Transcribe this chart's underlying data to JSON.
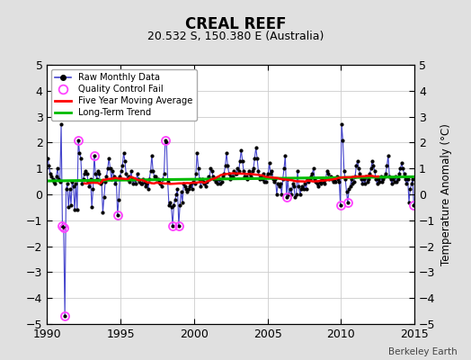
{
  "title": "CREAL REEF",
  "subtitle": "20.532 S, 150.380 E (Australia)",
  "ylabel": "Temperature Anomaly (°C)",
  "watermark": "Berkeley Earth",
  "xlim": [
    1990,
    2015
  ],
  "ylim": [
    -5,
    5
  ],
  "yticks": [
    -5,
    -4,
    -3,
    -2,
    -1,
    0,
    1,
    2,
    3,
    4,
    5
  ],
  "xticks": [
    1990,
    1995,
    2000,
    2005,
    2010,
    2015
  ],
  "bg_color": "#e0e0e0",
  "plot_bg_color": "#ffffff",
  "raw_line_color": "#4444cc",
  "raw_dot_color": "#000000",
  "qc_fail_color": "#ff44ff",
  "moving_avg_color": "#ff0000",
  "trend_color": "#00bb00",
  "raw_data": [
    [
      1990.042,
      1.4
    ],
    [
      1990.125,
      1.1
    ],
    [
      1990.208,
      0.8
    ],
    [
      1990.292,
      0.7
    ],
    [
      1990.375,
      0.6
    ],
    [
      1990.458,
      0.5
    ],
    [
      1990.542,
      0.4
    ],
    [
      1990.625,
      0.7
    ],
    [
      1990.708,
      1.0
    ],
    [
      1990.792,
      0.6
    ],
    [
      1990.875,
      0.5
    ],
    [
      1990.958,
      2.7
    ],
    [
      1991.042,
      -1.2
    ],
    [
      1991.125,
      -1.3
    ],
    [
      1991.208,
      -4.7
    ],
    [
      1991.292,
      0.2
    ],
    [
      1991.375,
      0.4
    ],
    [
      1991.458,
      -0.5
    ],
    [
      1991.542,
      0.2
    ],
    [
      1991.625,
      -0.4
    ],
    [
      1991.708,
      0.5
    ],
    [
      1991.792,
      0.3
    ],
    [
      1991.875,
      -0.6
    ],
    [
      1991.958,
      0.4
    ],
    [
      1992.042,
      -0.6
    ],
    [
      1992.125,
      2.1
    ],
    [
      1992.208,
      1.6
    ],
    [
      1992.292,
      1.4
    ],
    [
      1992.375,
      0.4
    ],
    [
      1992.458,
      0.6
    ],
    [
      1992.542,
      0.8
    ],
    [
      1992.625,
      0.9
    ],
    [
      1992.708,
      0.8
    ],
    [
      1992.792,
      0.5
    ],
    [
      1992.875,
      0.3
    ],
    [
      1992.958,
      0.6
    ],
    [
      1993.042,
      -0.5
    ],
    [
      1993.125,
      0.2
    ],
    [
      1993.208,
      1.5
    ],
    [
      1993.292,
      0.8
    ],
    [
      1993.375,
      0.6
    ],
    [
      1993.458,
      0.9
    ],
    [
      1993.542,
      0.8
    ],
    [
      1993.625,
      0.4
    ],
    [
      1993.708,
      0.5
    ],
    [
      1993.792,
      -0.7
    ],
    [
      1993.875,
      -0.1
    ],
    [
      1993.958,
      0.5
    ],
    [
      1994.042,
      0.7
    ],
    [
      1994.125,
      1.0
    ],
    [
      1994.208,
      1.4
    ],
    [
      1994.292,
      1.0
    ],
    [
      1994.375,
      0.6
    ],
    [
      1994.458,
      0.9
    ],
    [
      1994.542,
      0.7
    ],
    [
      1994.625,
      0.4
    ],
    [
      1994.708,
      0.6
    ],
    [
      1994.792,
      -0.8
    ],
    [
      1994.875,
      -0.2
    ],
    [
      1994.958,
      0.7
    ],
    [
      1995.042,
      0.9
    ],
    [
      1995.125,
      1.1
    ],
    [
      1995.208,
      1.6
    ],
    [
      1995.292,
      1.3
    ],
    [
      1995.375,
      0.8
    ],
    [
      1995.458,
      0.6
    ],
    [
      1995.542,
      0.7
    ],
    [
      1995.625,
      0.5
    ],
    [
      1995.708,
      0.9
    ],
    [
      1995.792,
      0.6
    ],
    [
      1995.875,
      0.4
    ],
    [
      1995.958,
      0.6
    ],
    [
      1996.042,
      0.4
    ],
    [
      1996.125,
      0.8
    ],
    [
      1996.208,
      0.6
    ],
    [
      1996.292,
      0.5
    ],
    [
      1996.375,
      0.4
    ],
    [
      1996.458,
      0.4
    ],
    [
      1996.542,
      0.6
    ],
    [
      1996.625,
      0.5
    ],
    [
      1996.708,
      0.3
    ],
    [
      1996.792,
      0.4
    ],
    [
      1996.875,
      0.2
    ],
    [
      1996.958,
      0.6
    ],
    [
      1997.042,
      0.9
    ],
    [
      1997.125,
      1.5
    ],
    [
      1997.208,
      0.9
    ],
    [
      1997.292,
      0.7
    ],
    [
      1997.375,
      0.7
    ],
    [
      1997.458,
      0.6
    ],
    [
      1997.542,
      0.6
    ],
    [
      1997.625,
      0.5
    ],
    [
      1997.708,
      0.4
    ],
    [
      1997.792,
      0.3
    ],
    [
      1997.875,
      0.6
    ],
    [
      1997.958,
      0.8
    ],
    [
      1998.042,
      2.1
    ],
    [
      1998.125,
      2.0
    ],
    [
      1998.208,
      0.5
    ],
    [
      1998.292,
      -0.4
    ],
    [
      1998.375,
      -0.3
    ],
    [
      1998.458,
      -0.5
    ],
    [
      1998.542,
      -1.2
    ],
    [
      1998.625,
      -0.4
    ],
    [
      1998.708,
      -0.2
    ],
    [
      1998.792,
      0.0
    ],
    [
      1998.875,
      0.2
    ],
    [
      1998.958,
      -1.2
    ],
    [
      1999.042,
      -0.4
    ],
    [
      1999.125,
      0.1
    ],
    [
      1999.208,
      -0.3
    ],
    [
      1999.292,
      0.4
    ],
    [
      1999.375,
      0.3
    ],
    [
      1999.458,
      0.2
    ],
    [
      1999.542,
      0.1
    ],
    [
      1999.625,
      0.2
    ],
    [
      1999.708,
      0.3
    ],
    [
      1999.792,
      0.4
    ],
    [
      1999.875,
      0.2
    ],
    [
      1999.958,
      0.5
    ],
    [
      2000.042,
      0.4
    ],
    [
      2000.125,
      0.8
    ],
    [
      2000.208,
      1.6
    ],
    [
      2000.292,
      1.0
    ],
    [
      2000.375,
      0.6
    ],
    [
      2000.458,
      0.3
    ],
    [
      2000.542,
      0.6
    ],
    [
      2000.625,
      0.5
    ],
    [
      2000.708,
      0.4
    ],
    [
      2000.792,
      0.3
    ],
    [
      2000.875,
      0.5
    ],
    [
      2000.958,
      0.7
    ],
    [
      2001.042,
      0.6
    ],
    [
      2001.125,
      1.0
    ],
    [
      2001.208,
      0.9
    ],
    [
      2001.292,
      0.7
    ],
    [
      2001.375,
      0.6
    ],
    [
      2001.458,
      0.5
    ],
    [
      2001.542,
      0.6
    ],
    [
      2001.625,
      0.4
    ],
    [
      2001.708,
      0.6
    ],
    [
      2001.792,
      0.4
    ],
    [
      2001.875,
      0.5
    ],
    [
      2001.958,
      0.7
    ],
    [
      2002.042,
      0.8
    ],
    [
      2002.125,
      1.1
    ],
    [
      2002.208,
      1.6
    ],
    [
      2002.292,
      1.1
    ],
    [
      2002.375,
      0.8
    ],
    [
      2002.458,
      0.6
    ],
    [
      2002.542,
      0.7
    ],
    [
      2002.625,
      0.7
    ],
    [
      2002.708,
      0.9
    ],
    [
      2002.792,
      0.8
    ],
    [
      2002.875,
      0.8
    ],
    [
      2002.958,
      1.0
    ],
    [
      2003.042,
      0.9
    ],
    [
      2003.125,
      1.3
    ],
    [
      2003.208,
      1.7
    ],
    [
      2003.292,
      1.3
    ],
    [
      2003.375,
      0.9
    ],
    [
      2003.458,
      0.7
    ],
    [
      2003.542,
      0.7
    ],
    [
      2003.625,
      0.6
    ],
    [
      2003.708,
      0.9
    ],
    [
      2003.792,
      0.8
    ],
    [
      2003.875,
      0.7
    ],
    [
      2003.958,
      0.9
    ],
    [
      2004.042,
      1.0
    ],
    [
      2004.125,
      1.4
    ],
    [
      2004.208,
      1.8
    ],
    [
      2004.292,
      1.4
    ],
    [
      2004.375,
      0.9
    ],
    [
      2004.458,
      0.6
    ],
    [
      2004.542,
      0.7
    ],
    [
      2004.625,
      0.6
    ],
    [
      2004.708,
      0.8
    ],
    [
      2004.792,
      0.5
    ],
    [
      2004.875,
      0.5
    ],
    [
      2004.958,
      0.7
    ],
    [
      2005.042,
      0.8
    ],
    [
      2005.125,
      1.2
    ],
    [
      2005.208,
      0.8
    ],
    [
      2005.292,
      0.9
    ],
    [
      2005.375,
      0.6
    ],
    [
      2005.458,
      0.5
    ],
    [
      2005.542,
      0.6
    ],
    [
      2005.625,
      0.0
    ],
    [
      2005.708,
      0.4
    ],
    [
      2005.792,
      0.3
    ],
    [
      2005.875,
      0.4
    ],
    [
      2005.958,
      0.0
    ],
    [
      2006.042,
      0.6
    ],
    [
      2006.125,
      1.0
    ],
    [
      2006.208,
      1.5
    ],
    [
      2006.292,
      -0.1
    ],
    [
      2006.375,
      0.6
    ],
    [
      2006.458,
      0.0
    ],
    [
      2006.542,
      0.2
    ],
    [
      2006.625,
      0.0
    ],
    [
      2006.708,
      0.4
    ],
    [
      2006.792,
      0.3
    ],
    [
      2006.875,
      -0.1
    ],
    [
      2006.958,
      0.0
    ],
    [
      2007.042,
      0.9
    ],
    [
      2007.125,
      0.3
    ],
    [
      2007.208,
      0.0
    ],
    [
      2007.292,
      0.2
    ],
    [
      2007.375,
      0.3
    ],
    [
      2007.458,
      0.2
    ],
    [
      2007.542,
      0.4
    ],
    [
      2007.625,
      0.2
    ],
    [
      2007.708,
      0.6
    ],
    [
      2007.792,
      0.5
    ],
    [
      2007.875,
      0.6
    ],
    [
      2007.958,
      0.7
    ],
    [
      2008.042,
      0.8
    ],
    [
      2008.125,
      1.0
    ],
    [
      2008.208,
      0.6
    ],
    [
      2008.292,
      0.5
    ],
    [
      2008.375,
      0.4
    ],
    [
      2008.458,
      0.3
    ],
    [
      2008.542,
      0.5
    ],
    [
      2008.625,
      0.4
    ],
    [
      2008.708,
      0.6
    ],
    [
      2008.792,
      0.5
    ],
    [
      2008.875,
      0.4
    ],
    [
      2008.958,
      0.6
    ],
    [
      2009.042,
      0.9
    ],
    [
      2009.125,
      0.8
    ],
    [
      2009.208,
      0.6
    ],
    [
      2009.292,
      0.7
    ],
    [
      2009.375,
      0.6
    ],
    [
      2009.458,
      0.5
    ],
    [
      2009.542,
      0.6
    ],
    [
      2009.625,
      0.5
    ],
    [
      2009.708,
      0.7
    ],
    [
      2009.792,
      0.6
    ],
    [
      2009.875,
      0.5
    ],
    [
      2009.958,
      -0.4
    ],
    [
      2010.042,
      2.7
    ],
    [
      2010.125,
      2.1
    ],
    [
      2010.208,
      0.9
    ],
    [
      2010.292,
      0.6
    ],
    [
      2010.375,
      0.1
    ],
    [
      2010.458,
      -0.3
    ],
    [
      2010.542,
      0.2
    ],
    [
      2010.625,
      0.3
    ],
    [
      2010.708,
      0.6
    ],
    [
      2010.792,
      0.4
    ],
    [
      2010.875,
      0.5
    ],
    [
      2010.958,
      0.7
    ],
    [
      2011.042,
      1.1
    ],
    [
      2011.125,
      1.3
    ],
    [
      2011.208,
      1.0
    ],
    [
      2011.292,
      0.8
    ],
    [
      2011.375,
      0.6
    ],
    [
      2011.458,
      0.4
    ],
    [
      2011.542,
      0.6
    ],
    [
      2011.625,
      0.4
    ],
    [
      2011.708,
      0.7
    ],
    [
      2011.792,
      0.5
    ],
    [
      2011.875,
      0.6
    ],
    [
      2011.958,
      0.8
    ],
    [
      2012.042,
      1.0
    ],
    [
      2012.125,
      1.3
    ],
    [
      2012.208,
      1.1
    ],
    [
      2012.292,
      0.9
    ],
    [
      2012.375,
      0.6
    ],
    [
      2012.458,
      0.4
    ],
    [
      2012.542,
      0.6
    ],
    [
      2012.625,
      0.5
    ],
    [
      2012.708,
      0.7
    ],
    [
      2012.792,
      0.5
    ],
    [
      2012.875,
      0.6
    ],
    [
      2012.958,
      0.7
    ],
    [
      2013.042,
      0.8
    ],
    [
      2013.125,
      1.1
    ],
    [
      2013.208,
      1.5
    ],
    [
      2013.292,
      0.7
    ],
    [
      2013.375,
      0.6
    ],
    [
      2013.458,
      0.4
    ],
    [
      2013.542,
      0.6
    ],
    [
      2013.625,
      0.5
    ],
    [
      2013.708,
      0.7
    ],
    [
      2013.792,
      0.5
    ],
    [
      2013.875,
      0.6
    ],
    [
      2013.958,
      0.8
    ],
    [
      2014.042,
      1.0
    ],
    [
      2014.125,
      1.2
    ],
    [
      2014.208,
      1.0
    ],
    [
      2014.292,
      0.8
    ],
    [
      2014.375,
      0.6
    ],
    [
      2014.458,
      0.4
    ],
    [
      2014.542,
      0.6
    ],
    [
      2014.625,
      -0.3
    ],
    [
      2014.708,
      0.2
    ],
    [
      2014.792,
      0.4
    ],
    [
      2014.875,
      0.6
    ],
    [
      2014.958,
      -0.4
    ]
  ],
  "qc_fail_points": [
    [
      1991.042,
      -1.2
    ],
    [
      1991.125,
      -1.3
    ],
    [
      1991.208,
      -4.7
    ],
    [
      1992.125,
      2.1
    ],
    [
      1993.208,
      1.5
    ],
    [
      1994.792,
      -0.8
    ],
    [
      1998.042,
      2.1
    ],
    [
      1998.542,
      -1.2
    ],
    [
      1998.958,
      -1.2
    ],
    [
      2006.292,
      -0.1
    ],
    [
      2009.958,
      -0.4
    ],
    [
      2010.458,
      -0.3
    ],
    [
      2014.958,
      -0.4
    ]
  ],
  "trend_x": [
    1990.0,
    2015.0
  ],
  "trend_y": [
    0.52,
    0.68
  ]
}
